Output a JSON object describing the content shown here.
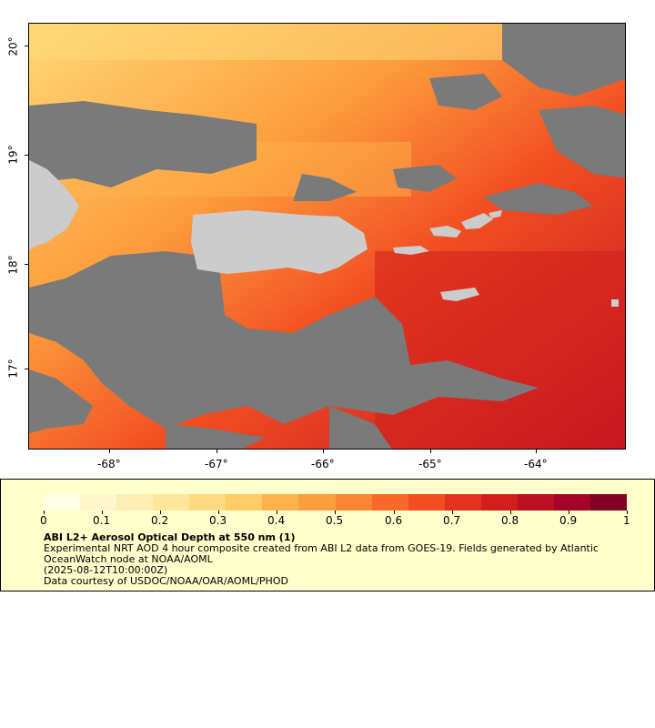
{
  "map": {
    "x_axis": {
      "ticks": [
        "-68°",
        "-67°",
        "-66°",
        "-65°",
        "-64°"
      ]
    },
    "y_axis": {
      "ticks": [
        "20°",
        "19°",
        "18°",
        "17°"
      ]
    },
    "colors": {
      "no_data": "#7a7a7a",
      "land": "#cccccc"
    }
  },
  "legend": {
    "tick_labels": [
      "0",
      "0.1",
      "0.2",
      "0.3",
      "0.4",
      "0.5",
      "0.6",
      "0.7",
      "0.8",
      "0.9",
      "1"
    ],
    "title": "ABI L2+ Aerosol Optical Depth at 550 nm (1)",
    "description_line1": "Experimental NRT AOD 4 hour composite created from ABI L2 data from GOES-19. Fields generated by Atlantic",
    "description_line2": "OceanWatch node at NOAA/AOML",
    "timestamp": "(2025-08-12T10:00:00Z)",
    "credit": "Data courtesy of USDOC/NOAA/OAR/AOML/PHOD",
    "colors": [
      "#ffffe6",
      "#fff6cc",
      "#ffeeb3",
      "#ffe699",
      "#ffd980",
      "#ffcc66",
      "#feb24c",
      "#fd9d3d",
      "#fc8533",
      "#f96a2a",
      "#f24e22",
      "#e3321e",
      "#d21f1e",
      "#bd0f23",
      "#a3052a",
      "#800026"
    ]
  }
}
